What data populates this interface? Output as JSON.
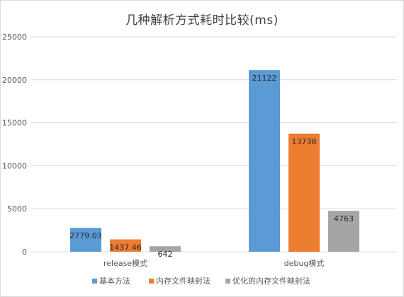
{
  "chart_data": {
    "type": "bar",
    "title": "几种解析方式耗时比较(ms)",
    "xlabel": "",
    "ylabel": "",
    "categories": [
      "release模式",
      "debug模式"
    ],
    "series": [
      {
        "name": "基本方法",
        "values": [
          2779.03,
          21122
        ],
        "labels": [
          "2779.03",
          "21122"
        ],
        "color": "#5b9bd5"
      },
      {
        "name": "内存文件映射法",
        "values": [
          1437.46,
          13738
        ],
        "labels": [
          "1437.46",
          "13738"
        ],
        "color": "#ed7d31"
      },
      {
        "name": "优化的内存文件映射法",
        "values": [
          642,
          4763
        ],
        "labels": [
          "642",
          "4763"
        ],
        "color": "#a5a5a5"
      }
    ],
    "ylim": [
      0,
      25000
    ],
    "yticks": [
      0,
      5000,
      10000,
      15000,
      20000,
      25000
    ],
    "grid": true,
    "legend_position": "bottom"
  }
}
